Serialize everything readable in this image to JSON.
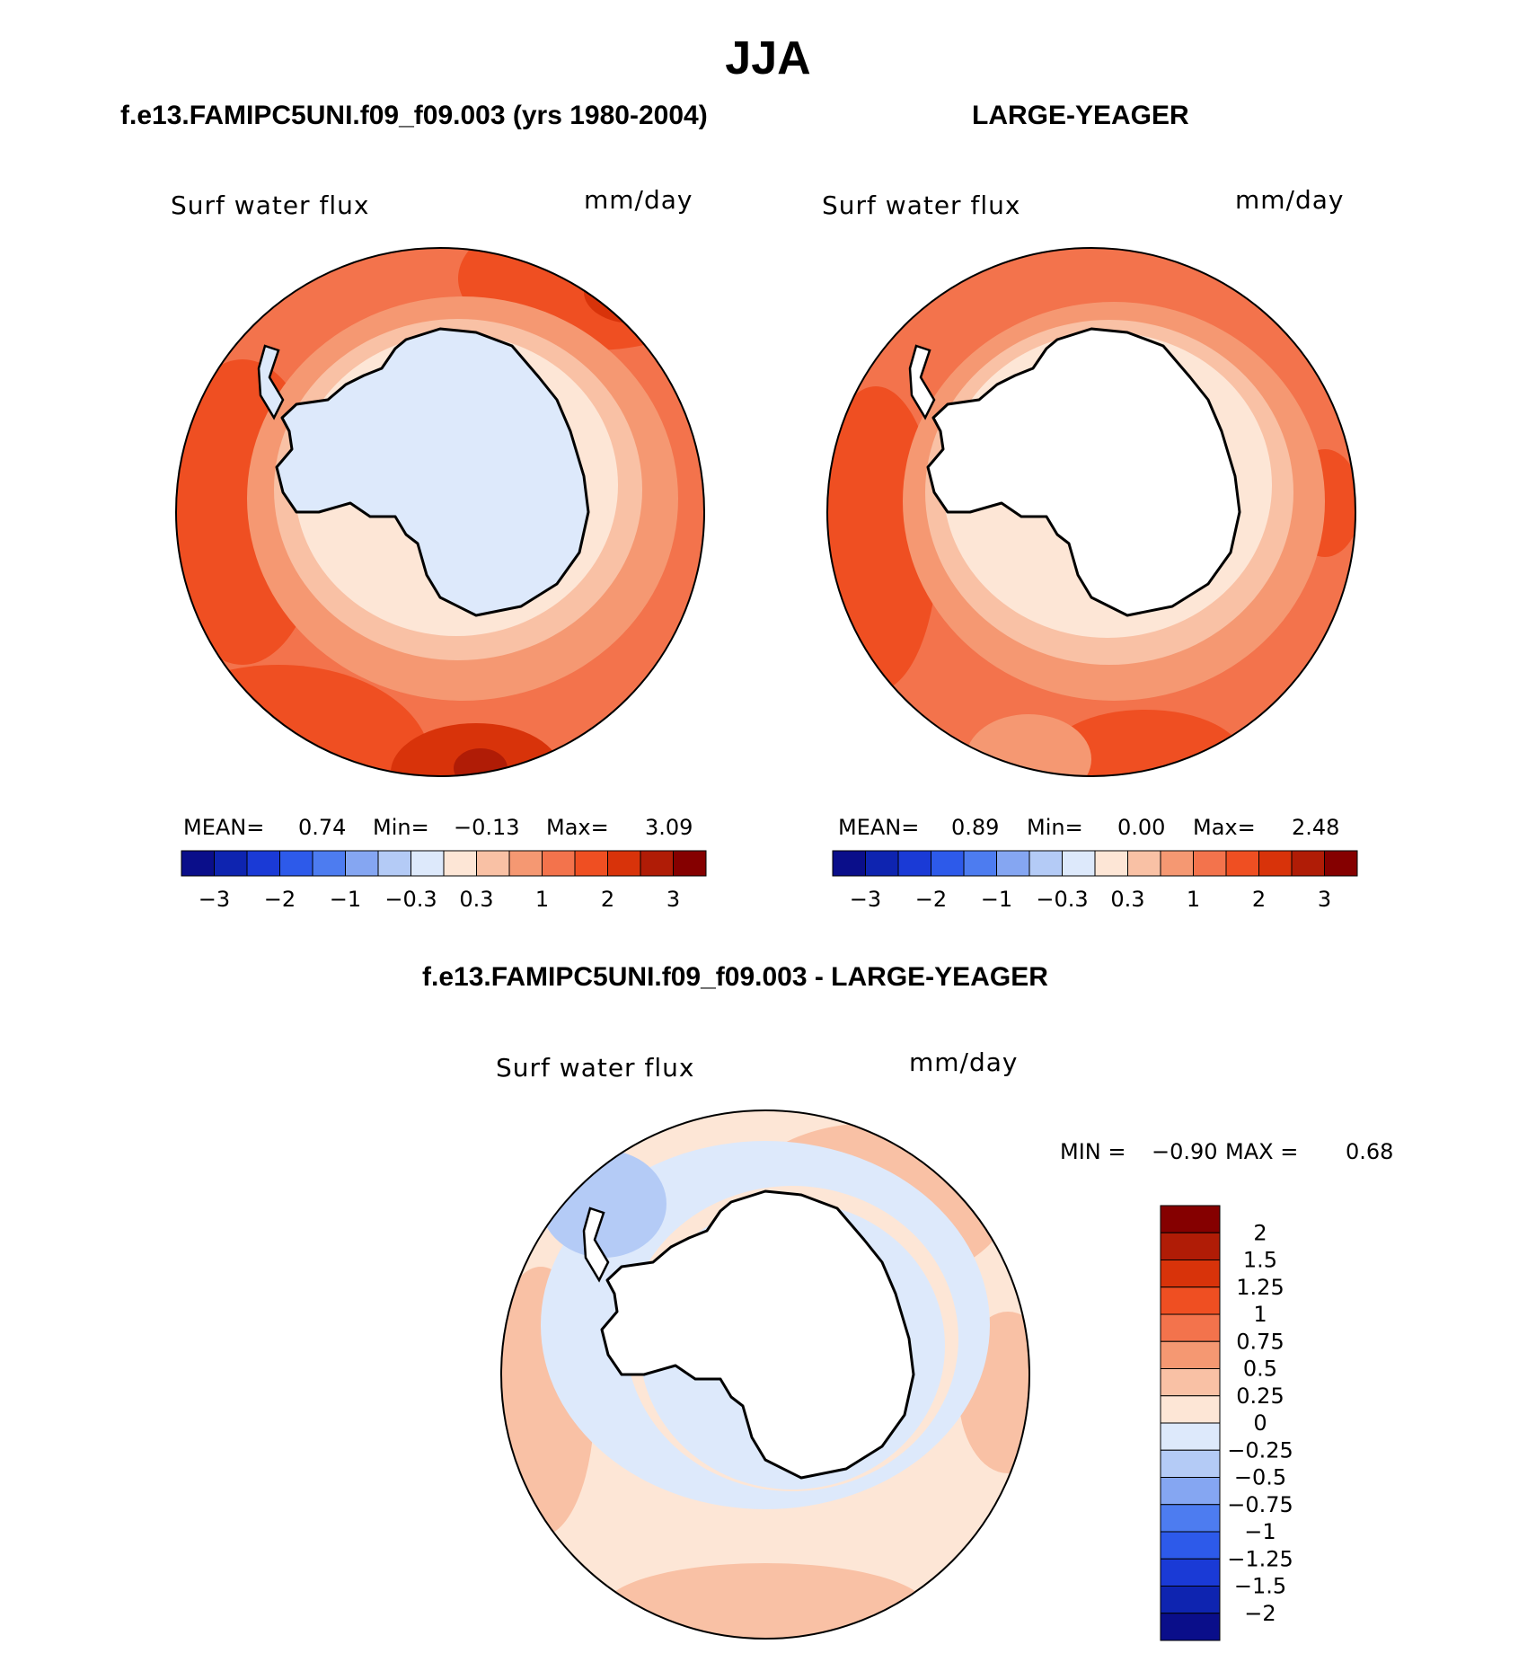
{
  "title": "JJA",
  "panels": [
    {
      "case_title": "f.e13.FAMIPC5UNI.f09_f09.003 (yrs 1980-2004)",
      "variable": "Surf water flux",
      "units": "mm/day",
      "stats": {
        "mean_label": "MEAN=",
        "mean": "0.74",
        "min_label": "Min=",
        "min": "−0.13",
        "max_label": "Max=",
        "max": "3.09"
      }
    },
    {
      "case_title": "LARGE-YEAGER",
      "variable": "Surf water flux",
      "units": "mm/day",
      "stats": {
        "mean_label": "MEAN=",
        "mean": "0.89",
        "min_label": "Min=",
        "min": "0.00",
        "max_label": "Max=",
        "max": "2.48"
      }
    }
  ],
  "diff_panel": {
    "case_title": "f.e13.FAMIPC5UNI.f09_f09.003 - LARGE-YEAGER",
    "variable": "Surf water flux",
    "units": "mm/day",
    "stats": {
      "min_label": "MIN =",
      "min": "−0.90",
      "max_label": "MAX =",
      "max": "0.68"
    }
  },
  "chart_data": [
    {
      "type": "heatmap",
      "projection": "south-polar-stereographic",
      "title": "f.e13.FAMIPC5UNI.f09_f09.003 (yrs 1980-2004)",
      "variable": "Surf water flux",
      "units": "mm/day",
      "mean": 0.74,
      "min": -0.13,
      "max": 3.09,
      "colorbar_levels": [
        -3,
        -2.5,
        -2,
        -1.5,
        -1,
        -0.6,
        -0.3,
        0,
        0.3,
        0.6,
        1,
        1.5,
        2,
        2.5,
        3
      ],
      "colorbar_labels": [
        "−3",
        "−2",
        "−1",
        "−0.3",
        "0.3",
        "1",
        "2",
        "3"
      ],
      "colorbar_colors": [
        "#0a0e8a",
        "#0e24b0",
        "#1a3ad6",
        "#2d5aea",
        "#4d7cf0",
        "#85a6f2",
        "#b4cbf6",
        "#dde9fb",
        "#fde6d6",
        "#f9c1a5",
        "#f59872",
        "#f3734c",
        "#ef4f22",
        "#d8330a",
        "#b01c06",
        "#850000"
      ],
      "region_values": {
        "ocean_outer_ring": "1 to 2",
        "ocean_middle_ring": "0.6 to 1",
        "coastal_ring": "0 to 0.3",
        "antarctic_interior": "-0.3 to 0"
      }
    },
    {
      "type": "heatmap",
      "projection": "south-polar-stereographic",
      "title": "LARGE-YEAGER",
      "variable": "Surf water flux",
      "units": "mm/day",
      "mean": 0.89,
      "min": 0.0,
      "max": 2.48,
      "colorbar_levels": [
        -3,
        -2.5,
        -2,
        -1.5,
        -1,
        -0.6,
        -0.3,
        0,
        0.3,
        0.6,
        1,
        1.5,
        2,
        2.5,
        3
      ],
      "colorbar_labels": [
        "−3",
        "−2",
        "−1",
        "−0.3",
        "0.3",
        "1",
        "2",
        "3"
      ],
      "colorbar_colors": [
        "#0a0e8a",
        "#0e24b0",
        "#1a3ad6",
        "#2d5aea",
        "#4d7cf0",
        "#85a6f2",
        "#b4cbf6",
        "#dde9fb",
        "#fde6d6",
        "#f9c1a5",
        "#f59872",
        "#f3734c",
        "#ef4f22",
        "#d8330a",
        "#b01c06",
        "#850000"
      ],
      "region_values": {
        "ocean_outer_ring": "1 to 2",
        "ocean_middle_ring": "0.6 to 1",
        "coastal_ring": "0 to 0.3",
        "antarctic_interior": "missing"
      }
    },
    {
      "type": "heatmap",
      "projection": "south-polar-stereographic",
      "title": "f.e13.FAMIPC5UNI.f09_f09.003 - LARGE-YEAGER",
      "variable": "Surf water flux",
      "units": "mm/day",
      "min": -0.9,
      "max": 0.68,
      "colorbar_levels": [
        2,
        1.5,
        1.25,
        1,
        0.75,
        0.5,
        0.25,
        0,
        -0.25,
        -0.5,
        -0.75,
        -1,
        -1.25,
        -1.5,
        -2
      ],
      "colorbar_labels": [
        "2",
        "1.5",
        "1.25",
        "1",
        "0.75",
        "0.5",
        "0.25",
        "0",
        "−0.25",
        "−0.5",
        "−0.75",
        "−1",
        "−1.25",
        "−1.5",
        "−2"
      ],
      "colorbar_colors": [
        "#850000",
        "#b01c06",
        "#d8330a",
        "#ef4f22",
        "#f3734c",
        "#f59872",
        "#f9c1a5",
        "#fde6d6",
        "#dde9fb",
        "#b4cbf6",
        "#85a6f2",
        "#4d7cf0",
        "#2d5aea",
        "#1a3ad6",
        "#0e24b0",
        "#0a0e8a"
      ],
      "region_values": {
        "outer_ocean": "0 to 0.5",
        "near_coast_ring": "-0.25 to 0",
        "antarctic_interior": "missing"
      }
    }
  ]
}
